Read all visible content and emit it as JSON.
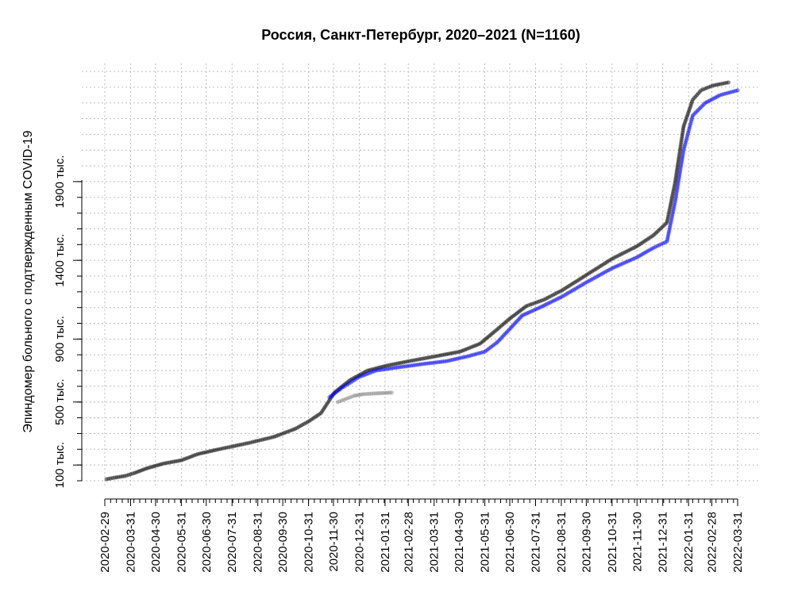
{
  "chart_data": {
    "type": "scatter",
    "title": "Россия, Санкт-Петербург, 2020–2021 (N=1160)",
    "xlabel": "",
    "ylabel": "Эпиндомер больного с подтвержденным COVID-19",
    "x_ticks": [
      "2020-02-29",
      "2020-03-31",
      "2020-04-30",
      "2020-05-31",
      "2020-06-30",
      "2020-07-31",
      "2020-08-31",
      "2020-09-30",
      "2020-10-31",
      "2020-11-30",
      "2020-12-31",
      "2021-01-31",
      "2021-02-28",
      "2021-03-31",
      "2021-04-30",
      "2021-05-31",
      "2021-06-30",
      "2021-07-31",
      "2021-08-31",
      "2021-09-30",
      "2021-10-31",
      "2021-11-30",
      "2021-12-31",
      "2022-01-31",
      "2022-02-28",
      "2022-03-31"
    ],
    "y_tick_labels": [
      {
        "value": 100000,
        "label": "100 тыс."
      },
      {
        "value": 500000,
        "label": "500 тыс."
      },
      {
        "value": 900000,
        "label": "900 тыс."
      },
      {
        "value": 1400000,
        "label": "1400 тыс."
      },
      {
        "value": 1900000,
        "label": "1900 тыс."
      }
    ],
    "ylim": [
      0,
      2600000
    ],
    "grid": true,
    "series": [
      {
        "color": "#000000",
        "points": [
          [
            "2020-03-02",
            10000
          ],
          [
            "2020-03-12",
            20000
          ],
          [
            "2020-03-24",
            30000
          ],
          [
            "2020-04-05",
            50000
          ],
          [
            "2020-04-20",
            80000
          ],
          [
            "2020-05-10",
            110000
          ],
          [
            "2020-05-31",
            130000
          ],
          [
            "2020-06-20",
            170000
          ],
          [
            "2020-07-15",
            200000
          ],
          [
            "2020-08-20",
            240000
          ],
          [
            "2020-09-20",
            280000
          ],
          [
            "2020-10-15",
            330000
          ],
          [
            "2020-11-01",
            380000
          ],
          [
            "2020-11-15",
            430000
          ],
          [
            "2020-12-01",
            560000
          ],
          [
            "2020-12-20",
            640000
          ],
          [
            "2021-01-10",
            700000
          ],
          [
            "2021-02-01",
            730000
          ],
          [
            "2021-03-01",
            760000
          ],
          [
            "2021-04-01",
            790000
          ],
          [
            "2021-05-01",
            820000
          ],
          [
            "2021-05-25",
            870000
          ],
          [
            "2021-06-10",
            940000
          ],
          [
            "2021-06-30",
            1030000
          ],
          [
            "2021-07-20",
            1110000
          ],
          [
            "2021-08-10",
            1150000
          ],
          [
            "2021-09-01",
            1210000
          ],
          [
            "2021-10-01",
            1310000
          ],
          [
            "2021-10-31",
            1410000
          ],
          [
            "2021-11-30",
            1490000
          ],
          [
            "2021-12-20",
            1560000
          ],
          [
            "2022-01-05",
            1640000
          ],
          [
            "2022-01-15",
            1900000
          ],
          [
            "2022-01-25",
            2250000
          ],
          [
            "2022-02-05",
            2420000
          ],
          [
            "2022-02-15",
            2480000
          ],
          [
            "2022-03-01",
            2510000
          ],
          [
            "2022-03-20",
            2530000
          ]
        ]
      },
      {
        "color": "#808080",
        "points": [
          [
            "2020-12-05",
            500000
          ],
          [
            "2020-12-15",
            520000
          ],
          [
            "2020-12-25",
            540000
          ],
          [
            "2021-01-05",
            550000
          ],
          [
            "2021-01-20",
            555000
          ],
          [
            "2021-02-08",
            560000
          ]
        ]
      },
      {
        "color": "#0000ff",
        "points": [
          [
            "2020-11-25",
            530000
          ],
          [
            "2020-12-10",
            590000
          ],
          [
            "2020-12-31",
            660000
          ],
          [
            "2021-01-20",
            700000
          ],
          [
            "2021-02-15",
            720000
          ],
          [
            "2021-03-15",
            740000
          ],
          [
            "2021-04-15",
            760000
          ],
          [
            "2021-05-10",
            790000
          ],
          [
            "2021-05-31",
            820000
          ],
          [
            "2021-06-15",
            880000
          ],
          [
            "2021-07-01",
            970000
          ],
          [
            "2021-07-15",
            1050000
          ],
          [
            "2021-08-05",
            1100000
          ],
          [
            "2021-09-01",
            1170000
          ],
          [
            "2021-09-30",
            1260000
          ],
          [
            "2021-10-31",
            1350000
          ],
          [
            "2021-11-30",
            1420000
          ],
          [
            "2021-12-20",
            1480000
          ],
          [
            "2022-01-05",
            1520000
          ],
          [
            "2022-01-15",
            1780000
          ],
          [
            "2022-01-25",
            2100000
          ],
          [
            "2022-02-05",
            2320000
          ],
          [
            "2022-02-20",
            2400000
          ],
          [
            "2022-03-10",
            2450000
          ],
          [
            "2022-03-31",
            2480000
          ]
        ]
      }
    ]
  }
}
